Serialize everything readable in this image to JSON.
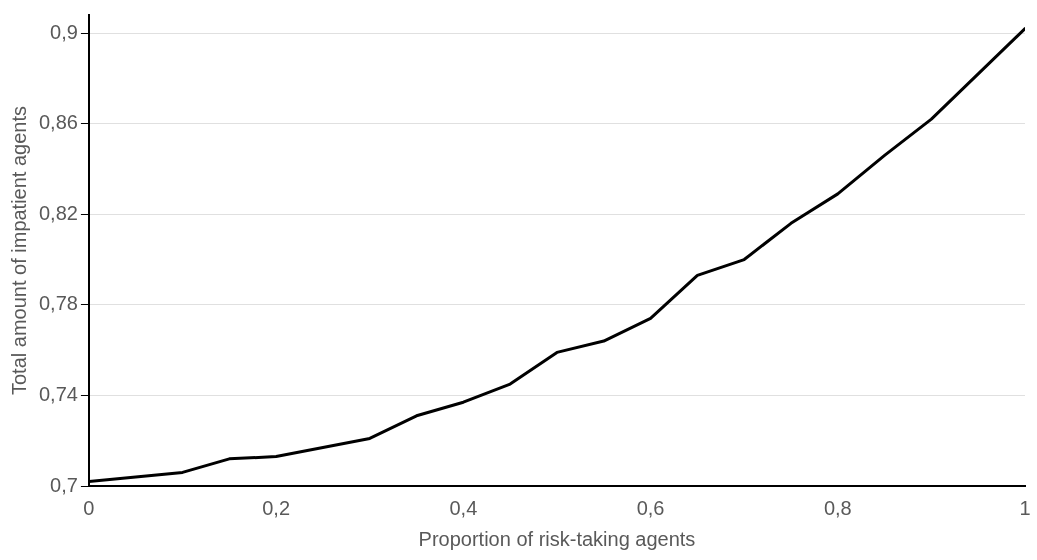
{
  "chart_data": {
    "type": "line",
    "xlabel": "Proportion of risk-taking agents",
    "ylabel": "Total amount of impatient agents",
    "x": [
      0,
      0.05,
      0.1,
      0.15,
      0.2,
      0.25,
      0.3,
      0.35,
      0.4,
      0.45,
      0.5,
      0.55,
      0.6,
      0.65,
      0.7,
      0.75,
      0.8,
      0.85,
      0.9,
      0.95,
      1
    ],
    "series": [
      {
        "color": "#000000",
        "values": [
          0.702,
          0.704,
          0.706,
          0.712,
          0.713,
          0.717,
          0.721,
          0.731,
          0.737,
          0.745,
          0.759,
          0.764,
          0.774,
          0.793,
          0.8,
          0.816,
          0.829,
          0.846,
          0.862,
          0.882,
          0.902
        ]
      }
    ],
    "xlim": [
      0,
      1
    ],
    "ylim": [
      0.7,
      0.908
    ],
    "xticks": [
      {
        "value": 0,
        "label": "0"
      },
      {
        "value": 0.2,
        "label": "0,2"
      },
      {
        "value": 0.4,
        "label": "0,4"
      },
      {
        "value": 0.6,
        "label": "0,6"
      },
      {
        "value": 0.8,
        "label": "0,8"
      },
      {
        "value": 1,
        "label": "1"
      }
    ],
    "yticks": [
      {
        "value": 0.7,
        "label": "0,7"
      },
      {
        "value": 0.74,
        "label": "0,74"
      },
      {
        "value": 0.78,
        "label": "0,78"
      },
      {
        "value": 0.82,
        "label": "0,82"
      },
      {
        "value": 0.86,
        "label": "0,86"
      },
      {
        "value": 0.9,
        "label": "0,9"
      }
    ],
    "grid": "y",
    "marker": "none",
    "line_style": "solid",
    "legend": false
  }
}
